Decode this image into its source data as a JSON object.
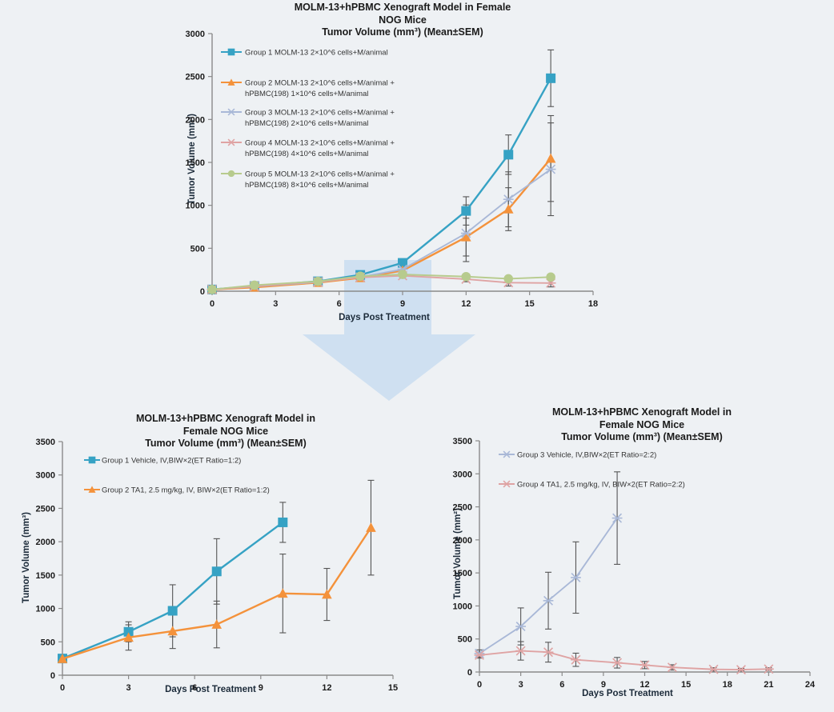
{
  "page": {
    "background": "#eef1f4"
  },
  "arrow": {
    "color": "#cfe0f1"
  },
  "chart_data": [
    {
      "type": "line",
      "title": "MOLM-13+hPBMC Xenograft Model in Female NOG Mice\nTumor Volume (mm³) (Mean±SEM)",
      "xlabel": "Days Post Treatment",
      "ylabel": "Tumor Volume (mm³)",
      "xlim": [
        0,
        18
      ],
      "ylim": [
        0,
        3000
      ],
      "xticks": [
        0,
        3,
        6,
        9,
        12,
        15,
        18
      ],
      "yticks": [
        0,
        500,
        1000,
        1500,
        2000,
        2500,
        3000
      ],
      "grid": false,
      "legend_position": "top-left-inside",
      "x": [
        0,
        2,
        5,
        7,
        9,
        12,
        14,
        16
      ],
      "series": [
        {
          "name": "Group 1 MOLM-13  2×10^6 cells+M/animal",
          "color": "#36a2c4",
          "marker": "square",
          "values": [
            20,
            60,
            115,
            190,
            330,
            935,
            1590,
            2480
          ],
          "sem": [
            0,
            15,
            20,
            30,
            45,
            165,
            230,
            330
          ]
        },
        {
          "name": "Group 2 MOLM-13  2×10^6 cells+M/animal +\nhPBMC(198) 1×10^6 cells+M/animal",
          "color": "#f4923b",
          "marker": "triangle",
          "values": [
            20,
            45,
            100,
            155,
            240,
            630,
            955,
            1545
          ],
          "sem": [
            0,
            10,
            15,
            25,
            40,
            220,
            250,
            500
          ]
        },
        {
          "name": "Group 3 MOLM-13  2×10^6 cells+M/animal +\nhPBMC(198) 2×10^6 cells+M/animal",
          "color": "#a9b8d7",
          "marker": "xstar",
          "values": [
            20,
            55,
            105,
            165,
            255,
            675,
            1070,
            1420
          ],
          "sem": [
            0,
            10,
            15,
            25,
            45,
            330,
            320,
            540
          ]
        },
        {
          "name": "Group 4 MOLM-13  2×10^6 cells+M/animal +\nhPBMC(198) 4×10^6 cells+M/animal",
          "color": "#dfa3a3",
          "marker": "xstar",
          "values": [
            20,
            60,
            110,
            160,
            180,
            140,
            100,
            95
          ],
          "sem": [
            0,
            10,
            15,
            20,
            30,
            30,
            40,
            45
          ]
        },
        {
          "name": "Group 5 MOLM-13  2×10^6 cells+M/animal +\nhPBMC(198) 8×10^6 cells+M/animal",
          "color": "#b7cb8d",
          "marker": "circle",
          "values": [
            20,
            70,
            115,
            175,
            195,
            170,
            145,
            165
          ],
          "sem": [
            0,
            10,
            15,
            20,
            30,
            30,
            30,
            35
          ]
        }
      ]
    },
    {
      "type": "line",
      "title": "MOLM-13+hPBMC Xenograft Model in Female NOG Mice\nTumor Volume (mm³) (Mean±SEM)",
      "xlabel": "Days Post Treatment",
      "ylabel": "Tumor Volume (mm³)",
      "xlim": [
        0,
        15
      ],
      "ylim": [
        0,
        3500
      ],
      "xticks": [
        0,
        3,
        6,
        9,
        12,
        15
      ],
      "yticks": [
        0,
        500,
        1000,
        1500,
        2000,
        2500,
        3000,
        3500
      ],
      "grid": false,
      "legend_position": "top-left-inside",
      "series": [
        {
          "name": "Group 1 Vehicle, IV,BIW×2(ET Ratio=1:2)",
          "color": "#36a2c4",
          "marker": "square",
          "x": [
            0,
            3,
            5,
            7,
            10
          ],
          "values": [
            250,
            650,
            965,
            1555,
            2290
          ],
          "sem": [
            35,
            150,
            390,
            490,
            300
          ]
        },
        {
          "name": "Group 2 TA1, 2.5 mg/kg, IV, BIW×2(ET Ratio=1:2)",
          "color": "#f4923b",
          "marker": "triangle",
          "x": [
            0,
            3,
            5,
            7,
            10,
            12,
            14
          ],
          "values": [
            245,
            565,
            660,
            760,
            1225,
            1210,
            2210
          ],
          "sem": [
            35,
            190,
            260,
            350,
            590,
            390,
            710
          ]
        }
      ]
    },
    {
      "type": "line",
      "title": "MOLM-13+hPBMC Xenograft Model in Female NOG Mice\nTumor Volume (mm³) (Mean±SEM)",
      "xlabel": "Days Post Treatment",
      "ylabel": "Tumor Volume (mm²)",
      "xlim": [
        0,
        24
      ],
      "ylim": [
        0,
        3500
      ],
      "xticks": [
        0,
        3,
        6,
        9,
        12,
        15,
        18,
        21,
        24
      ],
      "yticks": [
        0,
        500,
        1000,
        1500,
        2000,
        2500,
        3000,
        3500
      ],
      "grid": false,
      "legend_position": "top-left-inside",
      "series": [
        {
          "name": "Group 3 Vehicle, IV,BIW×2(ET Ratio=2:2)",
          "color": "#a9b8d7",
          "marker": "xstar",
          "x": [
            0,
            3,
            5,
            7,
            10
          ],
          "values": [
            280,
            690,
            1080,
            1430,
            2330
          ],
          "sem": [
            55,
            280,
            430,
            540,
            700
          ]
        },
        {
          "name": "Group 4 TA1, 2.5 mg/kg, IV, BIW×2(ET Ratio=2:2)",
          "color": "#dfa3a3",
          "marker": "xstar",
          "x": [
            0,
            3,
            5,
            7,
            10,
            12,
            14,
            17,
            19,
            21
          ],
          "values": [
            255,
            320,
            300,
            185,
            140,
            105,
            70,
            40,
            35,
            45
          ],
          "sem": [
            45,
            140,
            150,
            100,
            80,
            55,
            40,
            25,
            20,
            20
          ]
        }
      ]
    }
  ]
}
